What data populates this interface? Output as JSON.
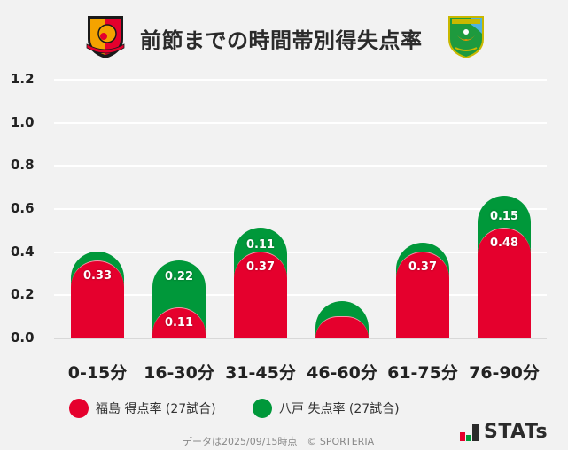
{
  "header": {
    "title": "前節までの時間帯別得失点率",
    "home_logo": "fukushima-united-fc-crest",
    "away_logo": "vanraure-hachinohe-crest"
  },
  "colors": {
    "home": "#e5002d",
    "away": "#00983a",
    "background": "#f2f2f2",
    "grid": "#ffffff"
  },
  "axis": {
    "y_ticks": [
      "1.2",
      "1.0",
      "0.8",
      "0.6",
      "0.4",
      "0.2",
      "0.0"
    ]
  },
  "bars": [
    {
      "category": "0-15分",
      "home": 0.33,
      "away": 0.04,
      "home_label": "0.33",
      "away_label": ""
    },
    {
      "category": "16-30分",
      "home": 0.11,
      "away": 0.22,
      "home_label": "0.11",
      "away_label": "0.22"
    },
    {
      "category": "31-45分",
      "home": 0.37,
      "away": 0.11,
      "home_label": "0.37",
      "away_label": "0.11"
    },
    {
      "category": "46-60分",
      "home": 0.07,
      "away": 0.07,
      "home_label": "",
      "away_label": ""
    },
    {
      "category": "61-75分",
      "home": 0.37,
      "away": 0.04,
      "home_label": "0.37",
      "away_label": ""
    },
    {
      "category": "76-90分",
      "home": 0.48,
      "away": 0.15,
      "home_label": "0.48",
      "away_label": "0.15"
    }
  ],
  "legend": {
    "home": "福島 得点率 (27試合)",
    "away": "八戸 失点率 (27試合)"
  },
  "footer": {
    "note": "データは2025/09/15時点　© SPORTERIA",
    "brand": "STATs"
  },
  "chart_data": {
    "type": "bar",
    "stacked": true,
    "title": "前節までの時間帯別得失点率",
    "categories": [
      "0-15分",
      "16-30分",
      "31-45分",
      "46-60分",
      "61-75分",
      "76-90分"
    ],
    "series": [
      {
        "name": "福島 得点率 (27試合)",
        "color": "#e5002d",
        "values": [
          0.33,
          0.11,
          0.37,
          0.07,
          0.37,
          0.48
        ]
      },
      {
        "name": "八戸 失点率 (27試合)",
        "color": "#00983a",
        "values": [
          0.04,
          0.22,
          0.11,
          0.07,
          0.04,
          0.15
        ]
      }
    ],
    "xlabel": "",
    "ylabel": "",
    "ylim": [
      0,
      1.2
    ],
    "yticks": [
      0.0,
      0.2,
      0.4,
      0.6,
      0.8,
      1.0,
      1.2
    ],
    "grid": true,
    "legend_position": "bottom"
  }
}
